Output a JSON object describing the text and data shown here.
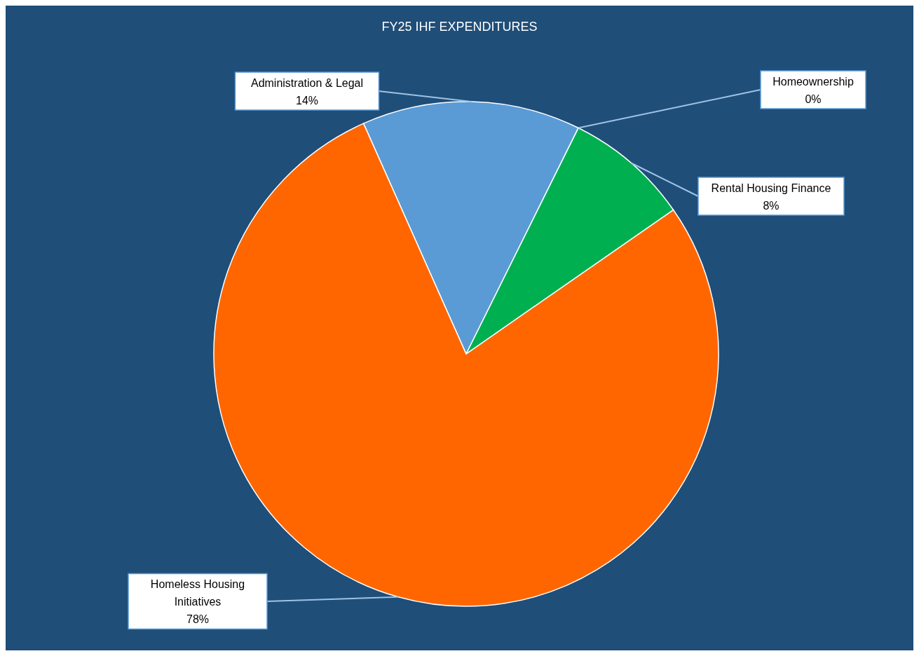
{
  "chart_data": {
    "type": "pie",
    "title": "FY25 IHF EXPENDITURES",
    "categories": [
      "Administration & Legal",
      "Homeownership",
      "Rental Housing Finance",
      "Homeless Housing Initiatives"
    ],
    "values": [
      14,
      0,
      8,
      78
    ],
    "value_labels": [
      "14%",
      "0%",
      "8%",
      "78%"
    ],
    "colors": [
      "#5b9bd5",
      "#f2f2f2",
      "#00b050",
      "#ff6600"
    ]
  }
}
